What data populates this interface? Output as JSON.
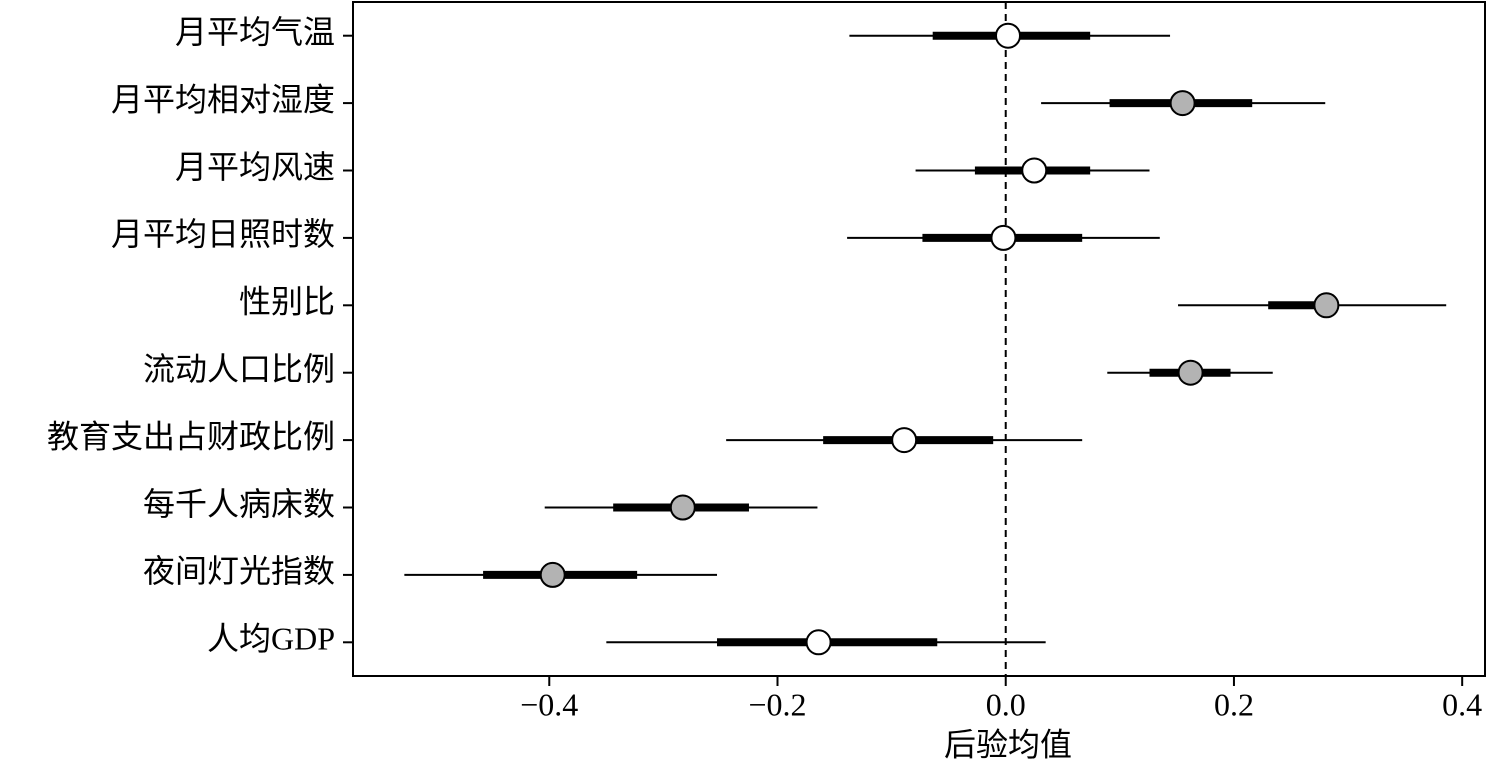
{
  "chart_data": {
    "type": "forest",
    "x_label": "后验均值",
    "categories": [
      "月平均气温",
      "月平均相对湿度",
      "月平均风速",
      "月平均日照时数",
      "性别比",
      "流动人口比例",
      "教育支出占财政比例",
      "每千人病床数",
      "夜间灯光指数",
      "人均GDP"
    ],
    "values": [
      0.002,
      0.155,
      0.025,
      -0.002,
      0.281,
      0.162,
      -0.089,
      -0.283,
      -0.397,
      -0.164
    ],
    "ci_inner": [
      [
        -0.064,
        0.074
      ],
      [
        0.091,
        0.216
      ],
      [
        -0.027,
        0.074
      ],
      [
        -0.073,
        0.067
      ],
      [
        0.23,
        0.285
      ],
      [
        0.126,
        0.197
      ],
      [
        -0.16,
        -0.011
      ],
      [
        -0.344,
        -0.225
      ],
      [
        -0.458,
        -0.323
      ],
      [
        -0.253,
        -0.06
      ]
    ],
    "ci_outer": [
      [
        -0.137,
        0.144
      ],
      [
        0.031,
        0.28
      ],
      [
        -0.079,
        0.126
      ],
      [
        -0.139,
        0.135
      ],
      [
        0.151,
        0.386
      ],
      [
        0.089,
        0.234
      ],
      [
        -0.245,
        0.067
      ],
      [
        -0.404,
        -0.165
      ],
      [
        -0.527,
        -0.253
      ],
      [
        -0.35,
        0.035
      ]
    ],
    "point_colors": [
      "#ffffff",
      "#b3b3b3",
      "#ffffff",
      "#ffffff",
      "#b3b3b3",
      "#b3b3b3",
      "#ffffff",
      "#b3b3b3",
      "#b3b3b3",
      "#ffffff"
    ],
    "line_color": "#000000",
    "ref_line": 0,
    "xlim": [
      -0.572,
      0.42
    ],
    "xticks": [
      {
        "value": -0.4,
        "label": "−0.4"
      },
      {
        "value": -0.2,
        "label": "−0.2"
      },
      {
        "value": 0,
        "label": "0.0"
      },
      0.2,
      0.4
    ]
  }
}
